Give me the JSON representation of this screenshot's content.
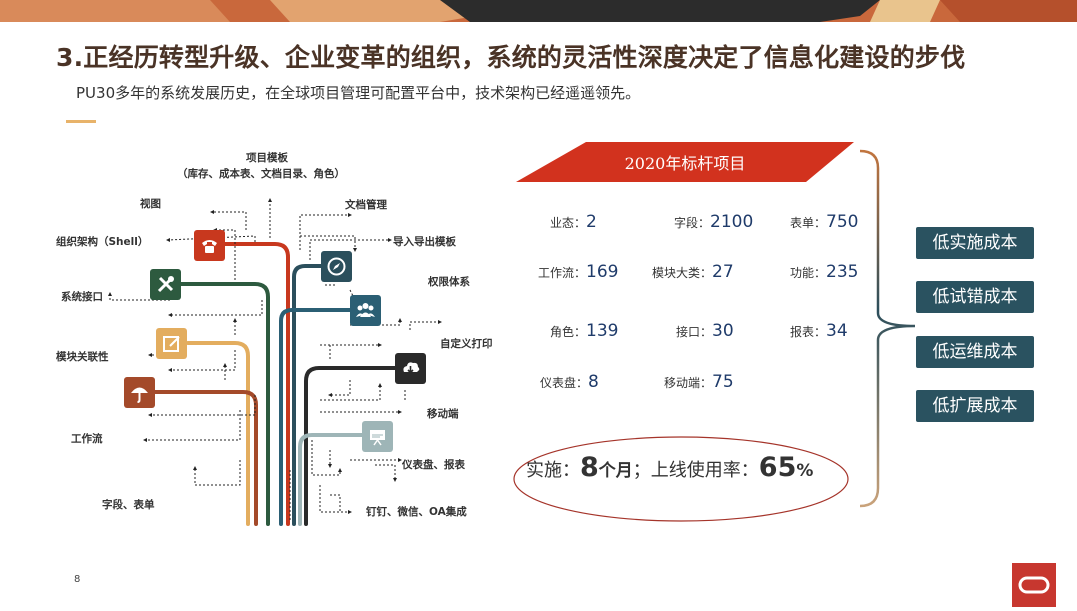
{
  "title": "3.正经历转型升级、企业变革的组织，系统的灵活性深度决定了信息化建设的步伐",
  "subtitle": "PU30多年的系统发展历史，在全球项目管理可配置平台中，技术架构已经遥遥领先。",
  "tree": {
    "labels": {
      "project_template": "项目模板",
      "project_template_detail": "（库存、成本表、文档目录、角色）",
      "view": "视图",
      "doc_mgmt": "文档管理",
      "org_structure": "组织架构（Shell）",
      "import_export": "导入导出模板",
      "permission": "权限体系",
      "system_interface": "系统接口",
      "custom_print": "自定义打印",
      "module_relation": "模块关联性",
      "mobile": "移动端",
      "workflow": "工作流",
      "dashboard_report": "仪表盘、报表",
      "field_form": "字段、表单",
      "dingtalk": "钉钉、微信、OA集成"
    },
    "icons": [
      "phone-icon",
      "tools-icon",
      "edit-icon",
      "umbrella-icon",
      "compass-icon",
      "users-icon",
      "download-icon",
      "presentation-icon"
    ]
  },
  "benchmark": {
    "banner": "2020年标杆项目",
    "stats": [
      {
        "key": "业态：",
        "value": "2"
      },
      {
        "key": "字段：",
        "value": "2100"
      },
      {
        "key": "表单：",
        "value": "750"
      },
      {
        "key": "工作流：",
        "value": "169"
      },
      {
        "key": "模块大类：",
        "value": "27"
      },
      {
        "key": "功能：",
        "value": "235"
      },
      {
        "key": "角色：",
        "value": "139"
      },
      {
        "key": "接口：",
        "value": "30"
      },
      {
        "key": "报表：",
        "value": "34"
      },
      {
        "key": "仪表盘：",
        "value": "8"
      },
      {
        "key": "移动端：",
        "value": "75"
      }
    ],
    "summary": {
      "impl_label": "实施：",
      "impl_value": "8",
      "impl_unit": "个月",
      "sep": "；",
      "rate_label": "上线使用率：",
      "rate_value": "65",
      "rate_unit": "%"
    }
  },
  "costs": [
    "低实施成本",
    "低试错成本",
    "低运维成本",
    "低扩展成本"
  ],
  "page_number": "8",
  "colors": {
    "title": "#4a3326",
    "banner": "#d2321e",
    "button": "#2a5260",
    "brand": "#c7372f",
    "accent": "#e8b36a"
  }
}
